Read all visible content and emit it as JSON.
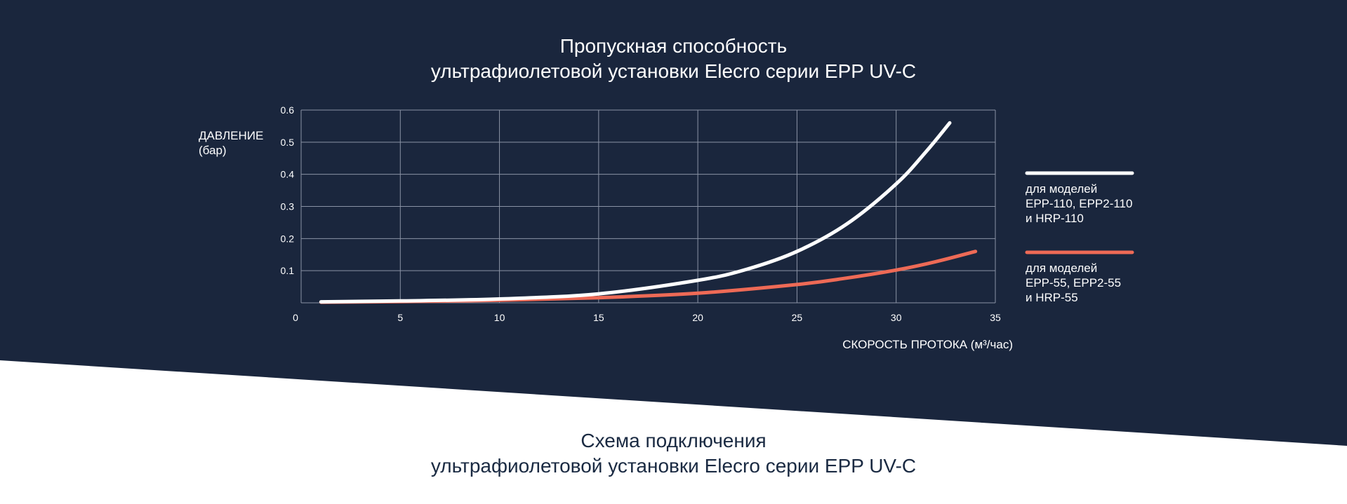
{
  "chart_title": {
    "line1": "Пропускная способность",
    "line2": "ультрафиолетовой установки Elecro серии EPP UV-C"
  },
  "section_title": {
    "line1": "Схема подключения",
    "line2": "ультрафиолетовой установки Elecro серии EPP UV-C"
  },
  "colors": {
    "background_dark": "#1a263d",
    "background_light": "#ffffff",
    "series_110": "#ffffff",
    "series_55": "#ee6a56",
    "grid": "#8a93a5"
  },
  "chart_data": {
    "type": "line",
    "ylabel_line1": "ДАВЛЕНИЕ",
    "ylabel_line2": "(бар)",
    "xlabel": "СКОРОСТЬ ПРОТОКА (м³/час)",
    "xlim": [
      0,
      35
    ],
    "ylim": [
      0,
      0.6
    ],
    "x_ticks": [
      0,
      5,
      10,
      15,
      20,
      25,
      30,
      35
    ],
    "x_tick_labels": [
      "0",
      "5",
      "10",
      "15",
      "20",
      "25",
      "30",
      "35"
    ],
    "y_ticks": [
      0.1,
      0.2,
      0.3,
      0.4,
      0.5,
      0.6
    ],
    "y_tick_labels": [
      "0.1",
      "0.2",
      "0.3",
      "0.4",
      "0.5",
      "0.6"
    ],
    "grid": true,
    "legend_position": "right",
    "series": [
      {
        "id": "epp110",
        "legend_lines": [
          "для моделей",
          "EPP-110, EPP2-110",
          "и HRP-110"
        ],
        "color": "#ffffff",
        "points": [
          [
            1,
            0.003
          ],
          [
            5,
            0.006
          ],
          [
            10,
            0.012
          ],
          [
            15,
            0.028
          ],
          [
            20,
            0.07
          ],
          [
            22.5,
            0.105
          ],
          [
            25,
            0.16
          ],
          [
            27.5,
            0.245
          ],
          [
            30,
            0.37
          ],
          [
            31.5,
            0.47
          ],
          [
            32.7,
            0.56
          ]
        ]
      },
      {
        "id": "epp55",
        "legend_lines": [
          "для моделей",
          "EPP-55, EPP2-55",
          "и HRP-55"
        ],
        "color": "#ee6a56",
        "points": [
          [
            1,
            0.002
          ],
          [
            5,
            0.004
          ],
          [
            10,
            0.008
          ],
          [
            15,
            0.016
          ],
          [
            20,
            0.03
          ],
          [
            25,
            0.057
          ],
          [
            27.5,
            0.077
          ],
          [
            30,
            0.102
          ],
          [
            32,
            0.128
          ],
          [
            34,
            0.16
          ]
        ]
      }
    ]
  }
}
